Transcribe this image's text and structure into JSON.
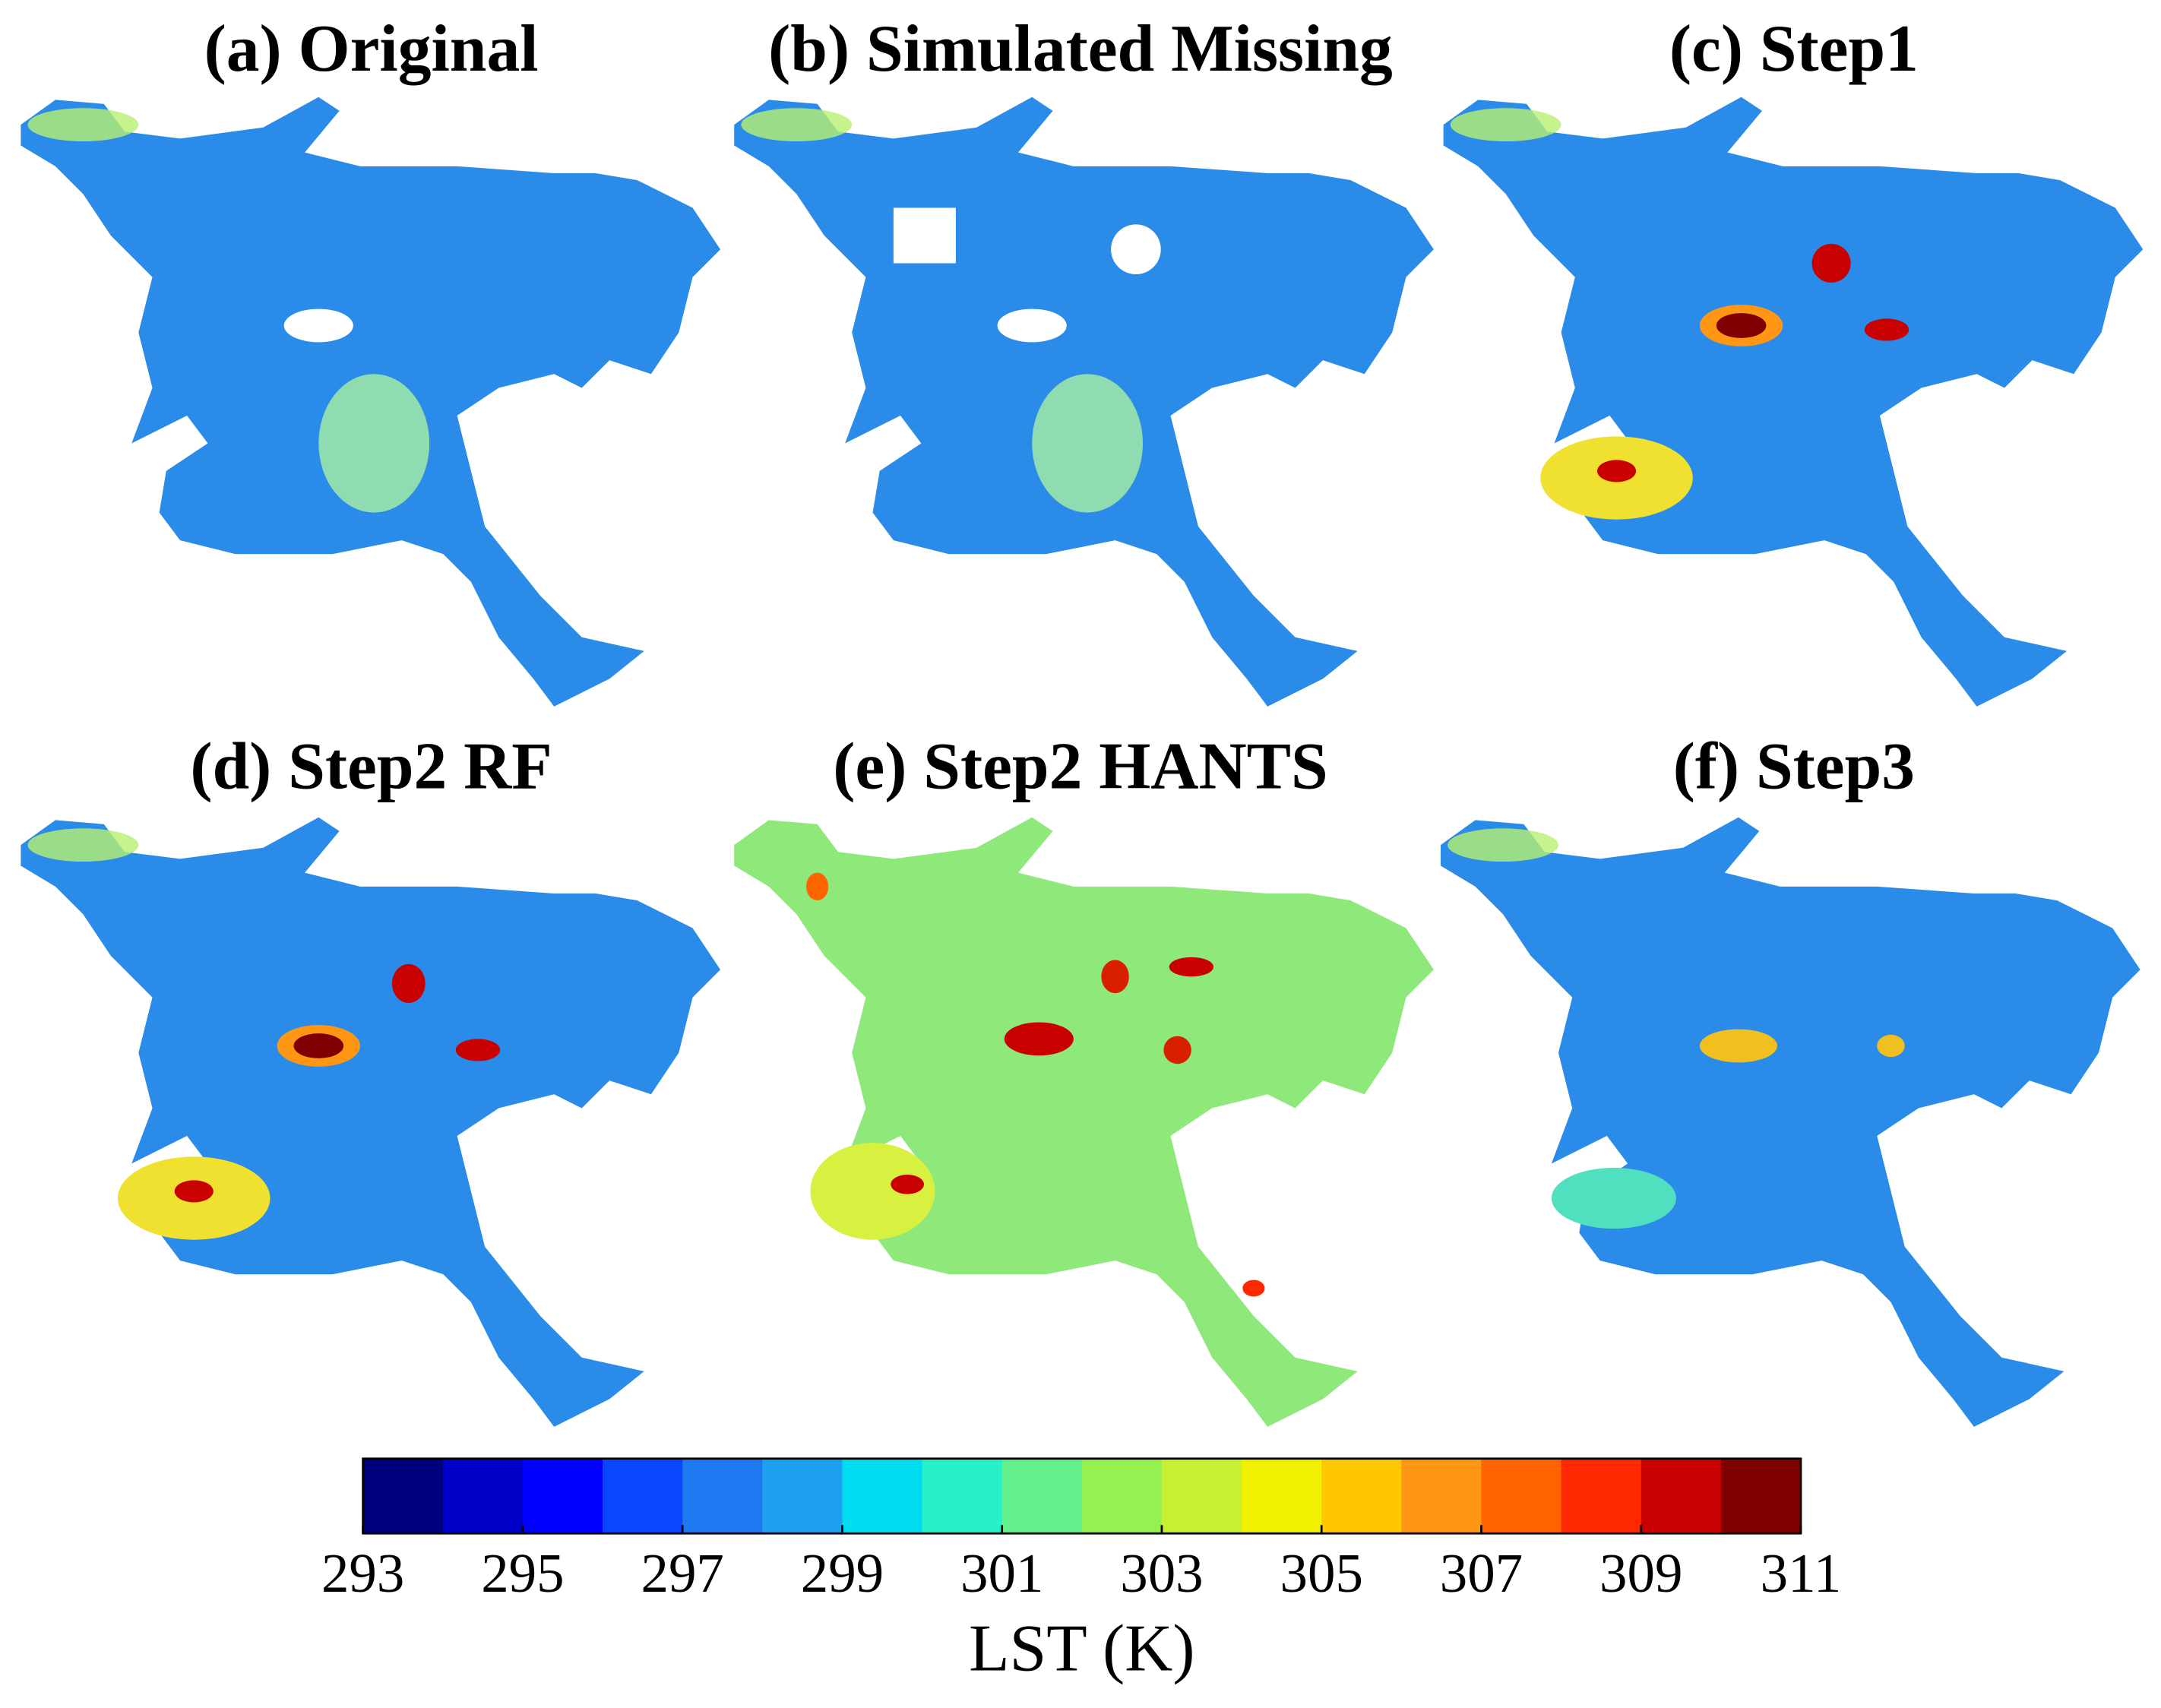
{
  "panels": [
    {
      "title": "(a) Original"
    },
    {
      "title": "(b) Simulated Missing"
    },
    {
      "title": "(c) Step1"
    },
    {
      "title": "(d) Step2 RF"
    },
    {
      "title": "(e) Step2 HANTS"
    },
    {
      "title": "(f) Step3"
    }
  ],
  "colorbar": {
    "label": "LST (K)",
    "lim": [
      293,
      311
    ],
    "ticks": [
      293,
      295,
      297,
      299,
      301,
      303,
      305,
      307,
      309,
      311
    ],
    "colors": [
      "#00007f",
      "#0000c8",
      "#0000ff",
      "#0a46ff",
      "#1e78f0",
      "#1ea0f0",
      "#00dcf0",
      "#28f0c8",
      "#64f08c",
      "#96f050",
      "#c8f032",
      "#f0f000",
      "#ffc800",
      "#ff9614",
      "#ff6400",
      "#ff2800",
      "#c80000",
      "#7f0000"
    ]
  }
}
